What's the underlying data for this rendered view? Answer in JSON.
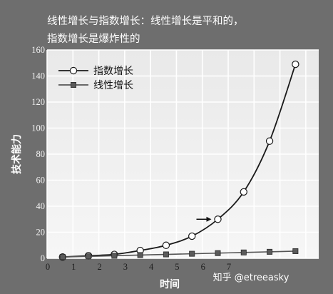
{
  "title_lines": [
    "线性增长与指数增长：线性增长是平和的，",
    "指数增长是爆炸性的"
  ],
  "watermark": "知乎 @etreeasky",
  "chart_data": {
    "type": "line",
    "title": "线性增长与指数增长：线性增长是平和的，指数增长是爆炸性的",
    "xlabel": "时间",
    "ylabel": "技术能力",
    "xlim": [
      0,
      10.5
    ],
    "ylim": [
      0,
      160
    ],
    "x_ticks": [
      "0",
      "1",
      "2",
      "3",
      "4",
      "5",
      "6",
      "7"
    ],
    "x_tick_values": [
      0,
      1,
      2,
      3,
      4,
      5,
      6,
      7
    ],
    "y_ticks": [
      "0",
      "20",
      "40",
      "60",
      "80",
      "100",
      "120",
      "140",
      "160"
    ],
    "y_tick_values": [
      0,
      20,
      40,
      60,
      80,
      100,
      120,
      140,
      160
    ],
    "grid": true,
    "legend_position": "top-left",
    "annotation": "arrow pointing to exponential point near x≈6.9",
    "series": [
      {
        "name": "指数增长",
        "marker": "circle",
        "color": "#1a1a1a",
        "x": [
          0.6,
          1.6,
          2.6,
          3.6,
          4.6,
          5.6,
          6.6,
          7.6,
          8.6,
          9.6
        ],
        "y": [
          1,
          2,
          3,
          6,
          10,
          17,
          30,
          51,
          90,
          149
        ]
      },
      {
        "name": "线性增长",
        "marker": "square",
        "color": "#555555",
        "x": [
          0.6,
          1.6,
          2.6,
          3.6,
          4.6,
          5.6,
          6.6,
          7.6,
          8.6,
          9.6
        ],
        "y": [
          1,
          1.5,
          2,
          2.5,
          3,
          3.5,
          4,
          4.5,
          5,
          5.5
        ]
      }
    ]
  }
}
